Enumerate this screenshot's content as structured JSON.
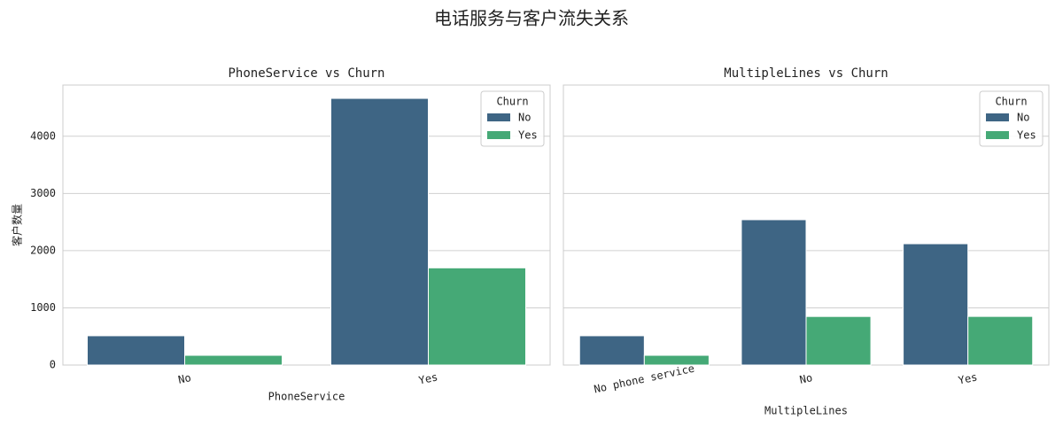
{
  "title": "电话服务与客户流失关系",
  "chart_data": [
    {
      "type": "bar",
      "title": "PhoneService vs Churn",
      "xlabel": "PhoneService",
      "ylabel": "客户数量",
      "categories": [
        "No",
        "Yes"
      ],
      "series": [
        {
          "name": "No",
          "color": "#3e6584",
          "values": [
            512,
            4662
          ]
        },
        {
          "name": "Yes",
          "color": "#45a976",
          "values": [
            170,
            1699
          ]
        }
      ],
      "legend_title": "Churn",
      "legend": "upper right",
      "ylim": [
        0,
        4895
      ],
      "yticks": [
        0,
        1000,
        2000,
        3000,
        4000
      ],
      "grid": true,
      "xtick_rotation": 12
    },
    {
      "type": "bar",
      "title": "MultipleLines vs Churn",
      "xlabel": "MultipleLines",
      "categories": [
        "No phone service",
        "No",
        "Yes"
      ],
      "series": [
        {
          "name": "No",
          "color": "#3e6584",
          "values": [
            512,
            2541,
            2121
          ]
        },
        {
          "name": "Yes",
          "color": "#45a976",
          "values": [
            170,
            849,
            850
          ]
        }
      ],
      "legend_title": "Churn",
      "legend": "upper right",
      "grid": true,
      "xtick_rotation": 12
    }
  ]
}
